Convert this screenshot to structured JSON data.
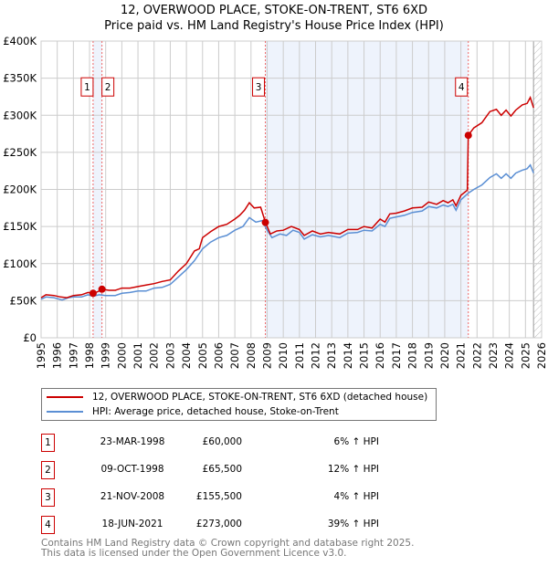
{
  "chart_data": {
    "type": "line",
    "title": "12, OVERWOOD PLACE, STOKE-ON-TRENT, ST6 6XD",
    "subtitle": "Price paid vs. HM Land Registry's House Price Index (HPI)",
    "xlim": [
      1995,
      2026
    ],
    "ylim": [
      0,
      400000
    ],
    "ytick_labels": [
      "£0",
      "£50K",
      "£100K",
      "£150K",
      "£200K",
      "£250K",
      "£300K",
      "£350K",
      "£400K"
    ],
    "yticks": [
      0,
      50000,
      100000,
      150000,
      200000,
      250000,
      300000,
      350000,
      400000
    ],
    "xticks": [
      1995,
      1996,
      1997,
      1998,
      1999,
      2000,
      2001,
      2002,
      2003,
      2004,
      2005,
      2006,
      2007,
      2008,
      2009,
      2010,
      2011,
      2012,
      2013,
      2014,
      2015,
      2016,
      2017,
      2018,
      2019,
      2020,
      2021,
      2022,
      2023,
      2024,
      2025,
      2026
    ],
    "grid": true,
    "colors": {
      "property": "#cc0000",
      "hpi": "#5b8fd4",
      "shade": "#eef3fc",
      "sale_marker": "#cc0000"
    },
    "series": [
      {
        "name": "12, OVERWOOD PLACE, STOKE-ON-TRENT, ST6 6XD (detached house)",
        "color": "#cc0000",
        "points": [
          [
            1995,
            54000
          ],
          [
            1995.3,
            58000
          ],
          [
            1995.8,
            57000
          ],
          [
            1996.2,
            55000
          ],
          [
            1996.6,
            54000
          ],
          [
            1997,
            57000
          ],
          [
            1997.5,
            58000
          ],
          [
            1997.9,
            61000
          ],
          [
            1998.22,
            60000
          ],
          [
            1998.5,
            62000
          ],
          [
            1998.77,
            65500
          ],
          [
            1999.2,
            64000
          ],
          [
            1999.6,
            64000
          ],
          [
            2000,
            67000
          ],
          [
            2000.5,
            67000
          ],
          [
            2001,
            69000
          ],
          [
            2001.5,
            71000
          ],
          [
            2002,
            73000
          ],
          [
            2002.5,
            76000
          ],
          [
            2003,
            78000
          ],
          [
            2003.5,
            90000
          ],
          [
            2004,
            100000
          ],
          [
            2004.5,
            117000
          ],
          [
            2004.8,
            120000
          ],
          [
            2005,
            135000
          ],
          [
            2005.5,
            143000
          ],
          [
            2006,
            150000
          ],
          [
            2006.5,
            153000
          ],
          [
            2007,
            160000
          ],
          [
            2007.3,
            165000
          ],
          [
            2007.6,
            172000
          ],
          [
            2007.9,
            182000
          ],
          [
            2008.2,
            175000
          ],
          [
            2008.6,
            176000
          ],
          [
            2008.9,
            155500
          ],
          [
            2009.2,
            140000
          ],
          [
            2009.6,
            144000
          ],
          [
            2010,
            145000
          ],
          [
            2010.5,
            150000
          ],
          [
            2011,
            146000
          ],
          [
            2011.3,
            138000
          ],
          [
            2011.8,
            144000
          ],
          [
            2012.3,
            140000
          ],
          [
            2012.8,
            142000
          ],
          [
            2013.5,
            140000
          ],
          [
            2014,
            146000
          ],
          [
            2014.6,
            146000
          ],
          [
            2015,
            150000
          ],
          [
            2015.5,
            148000
          ],
          [
            2016,
            160000
          ],
          [
            2016.3,
            156000
          ],
          [
            2016.6,
            167000
          ],
          [
            2017,
            168000
          ],
          [
            2017.5,
            171000
          ],
          [
            2018,
            175000
          ],
          [
            2018.6,
            176000
          ],
          [
            2019,
            183000
          ],
          [
            2019.5,
            180000
          ],
          [
            2019.9,
            185000
          ],
          [
            2020.2,
            182000
          ],
          [
            2020.5,
            186000
          ],
          [
            2020.7,
            178000
          ],
          [
            2021,
            192000
          ],
          [
            2021.4,
            199000
          ],
          [
            2021.46,
            273000
          ],
          [
            2021.8,
            283000
          ],
          [
            2022.3,
            290000
          ],
          [
            2022.8,
            305000
          ],
          [
            2023.2,
            308000
          ],
          [
            2023.5,
            300000
          ],
          [
            2023.8,
            307000
          ],
          [
            2024.1,
            299000
          ],
          [
            2024.4,
            307000
          ],
          [
            2024.8,
            314000
          ],
          [
            2025.1,
            316000
          ],
          [
            2025.3,
            324000
          ],
          [
            2025.5,
            310000
          ]
        ]
      },
      {
        "name": "HPI: Average price, detached house, Stoke-on-Trent",
        "color": "#5b8fd4",
        "points": [
          [
            1995,
            52000
          ],
          [
            1995.3,
            55000
          ],
          [
            1995.8,
            54000
          ],
          [
            1996.3,
            51000
          ],
          [
            1996.7,
            54000
          ],
          [
            1997,
            55000
          ],
          [
            1997.5,
            55000
          ],
          [
            1997.9,
            58000
          ],
          [
            1998.22,
            56000
          ],
          [
            1998.6,
            58000
          ],
          [
            1999,
            57000
          ],
          [
            1999.6,
            57000
          ],
          [
            2000,
            60000
          ],
          [
            2000.5,
            61000
          ],
          [
            2001,
            63000
          ],
          [
            2001.5,
            63000
          ],
          [
            2002,
            67000
          ],
          [
            2002.5,
            68000
          ],
          [
            2003,
            72000
          ],
          [
            2003.5,
            82000
          ],
          [
            2004,
            92000
          ],
          [
            2004.5,
            104000
          ],
          [
            2005,
            120000
          ],
          [
            2005.5,
            129000
          ],
          [
            2006,
            135000
          ],
          [
            2006.5,
            138000
          ],
          [
            2007,
            145000
          ],
          [
            2007.5,
            150000
          ],
          [
            2007.9,
            162000
          ],
          [
            2008.3,
            156000
          ],
          [
            2008.7,
            158000
          ],
          [
            2009,
            145000
          ],
          [
            2009.3,
            135000
          ],
          [
            2009.8,
            140000
          ],
          [
            2010.2,
            138000
          ],
          [
            2010.6,
            145000
          ],
          [
            2011,
            142000
          ],
          [
            2011.3,
            133000
          ],
          [
            2011.8,
            139000
          ],
          [
            2012.3,
            136000
          ],
          [
            2012.8,
            138000
          ],
          [
            2013.5,
            135000
          ],
          [
            2014,
            141000
          ],
          [
            2014.6,
            142000
          ],
          [
            2015,
            145000
          ],
          [
            2015.5,
            144000
          ],
          [
            2016,
            153000
          ],
          [
            2016.3,
            150000
          ],
          [
            2016.6,
            161000
          ],
          [
            2017,
            163000
          ],
          [
            2017.5,
            165000
          ],
          [
            2018,
            169000
          ],
          [
            2018.6,
            171000
          ],
          [
            2019,
            177000
          ],
          [
            2019.5,
            175000
          ],
          [
            2019.9,
            179000
          ],
          [
            2020.2,
            177000
          ],
          [
            2020.5,
            180000
          ],
          [
            2020.7,
            172000
          ],
          [
            2021,
            186000
          ],
          [
            2021.46,
            195000
          ],
          [
            2021.8,
            200000
          ],
          [
            2022.3,
            206000
          ],
          [
            2022.8,
            216000
          ],
          [
            2023.2,
            221000
          ],
          [
            2023.5,
            215000
          ],
          [
            2023.8,
            221000
          ],
          [
            2024.1,
            215000
          ],
          [
            2024.4,
            222000
          ],
          [
            2024.8,
            226000
          ],
          [
            2025.1,
            228000
          ],
          [
            2025.3,
            233000
          ],
          [
            2025.5,
            222000
          ]
        ]
      }
    ],
    "sales": [
      {
        "id": "1",
        "x": 1998.22,
        "price": 60000,
        "date": "23-MAR-1998",
        "price_label": "£60,000",
        "hpi_label": "6% ↑ HPI"
      },
      {
        "id": "2",
        "x": 1998.77,
        "price": 65500,
        "date": "09-OCT-1998",
        "price_label": "£65,500",
        "hpi_label": "12% ↑ HPI"
      },
      {
        "id": "3",
        "x": 2008.89,
        "price": 155500,
        "date": "21-NOV-2008",
        "price_label": "£155,500",
        "hpi_label": "4% ↑ HPI"
      },
      {
        "id": "4",
        "x": 2021.46,
        "price": 273000,
        "date": "18-JUN-2021",
        "price_label": "£273,000",
        "hpi_label": "39% ↑ HPI"
      }
    ],
    "marker_label_value": 337000,
    "forecast_from": 2025.5
  },
  "title_line1": "12, OVERWOOD PLACE, STOKE-ON-TRENT, ST6 6XD",
  "title_line2": "Price paid vs. HM Land Registry's House Price Index (HPI)",
  "legend": {
    "property": "12, OVERWOOD PLACE, STOKE-ON-TRENT, ST6 6XD (detached house)",
    "hpi": "HPI: Average price, detached house, Stoke-on-Trent"
  },
  "footer": {
    "line1": "Contains HM Land Registry data © Crown copyright and database right 2025.",
    "line2": "This data is licensed under the Open Government Licence v3.0."
  }
}
